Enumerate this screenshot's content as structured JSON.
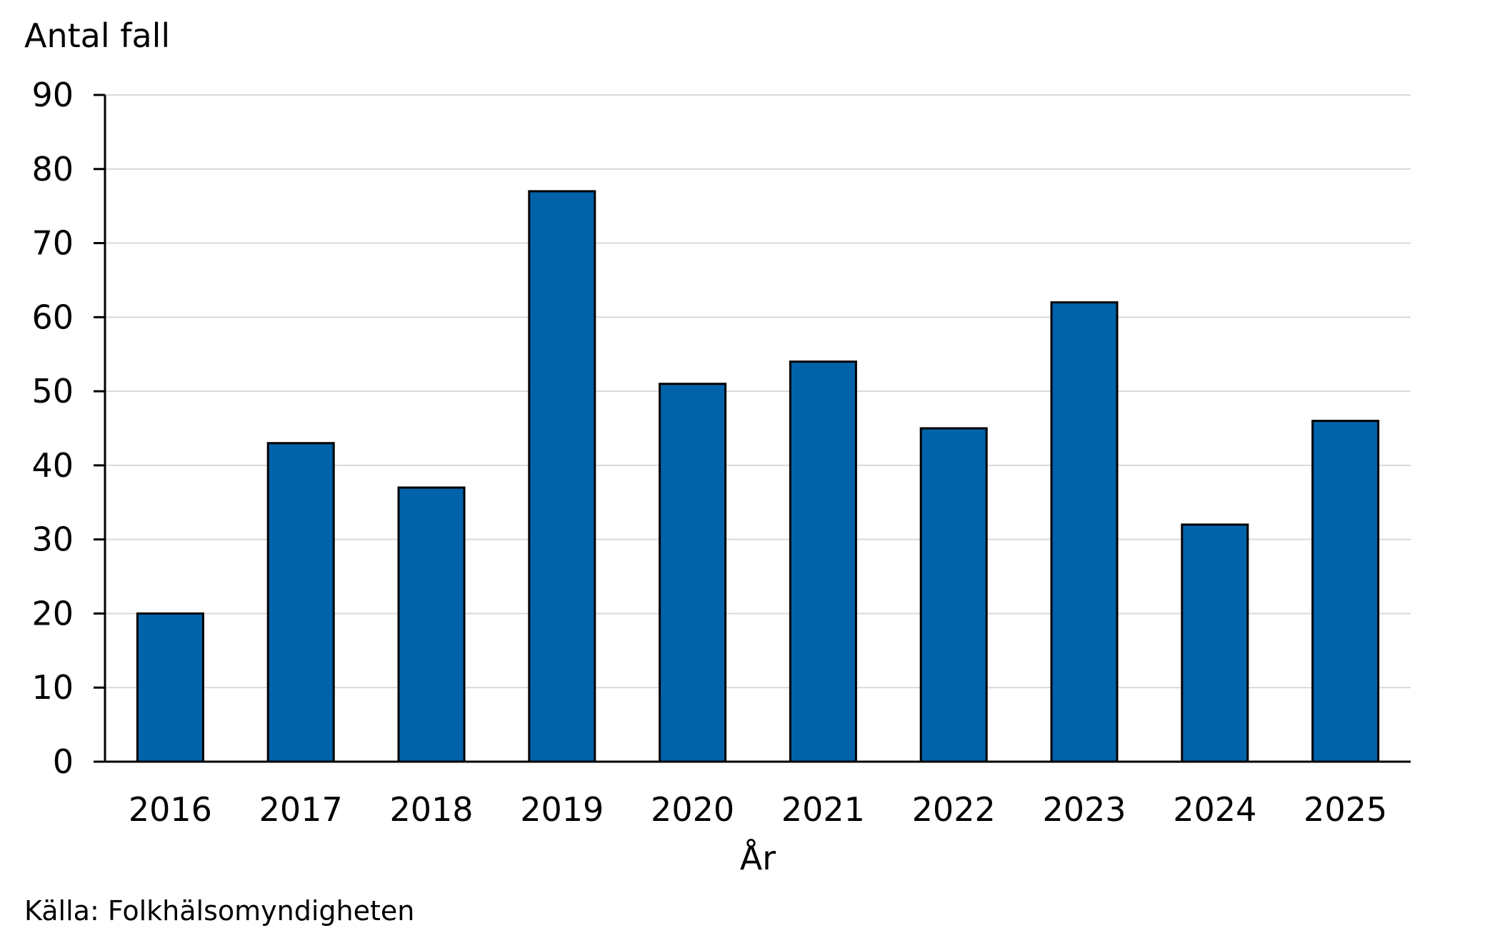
{
  "chart_data": {
    "type": "bar",
    "categories": [
      "2016",
      "2017",
      "2018",
      "2019",
      "2020",
      "2021",
      "2022",
      "2023",
      "2024",
      "2025"
    ],
    "values": [
      20,
      43,
      37,
      77,
      51,
      54,
      45,
      62,
      32,
      46
    ],
    "ylabel": "Antal fall",
    "xlabel": "År",
    "ylim": [
      0,
      90
    ],
    "yticks": [
      0,
      10,
      20,
      30,
      40,
      50,
      60,
      70,
      80,
      90
    ],
    "grid": true,
    "bar_color": "#0063aa",
    "bar_outline_color": "#000000",
    "grid_color": "#d9d9d9"
  },
  "source_note": "Källa: Folkhälsomyndigheten"
}
